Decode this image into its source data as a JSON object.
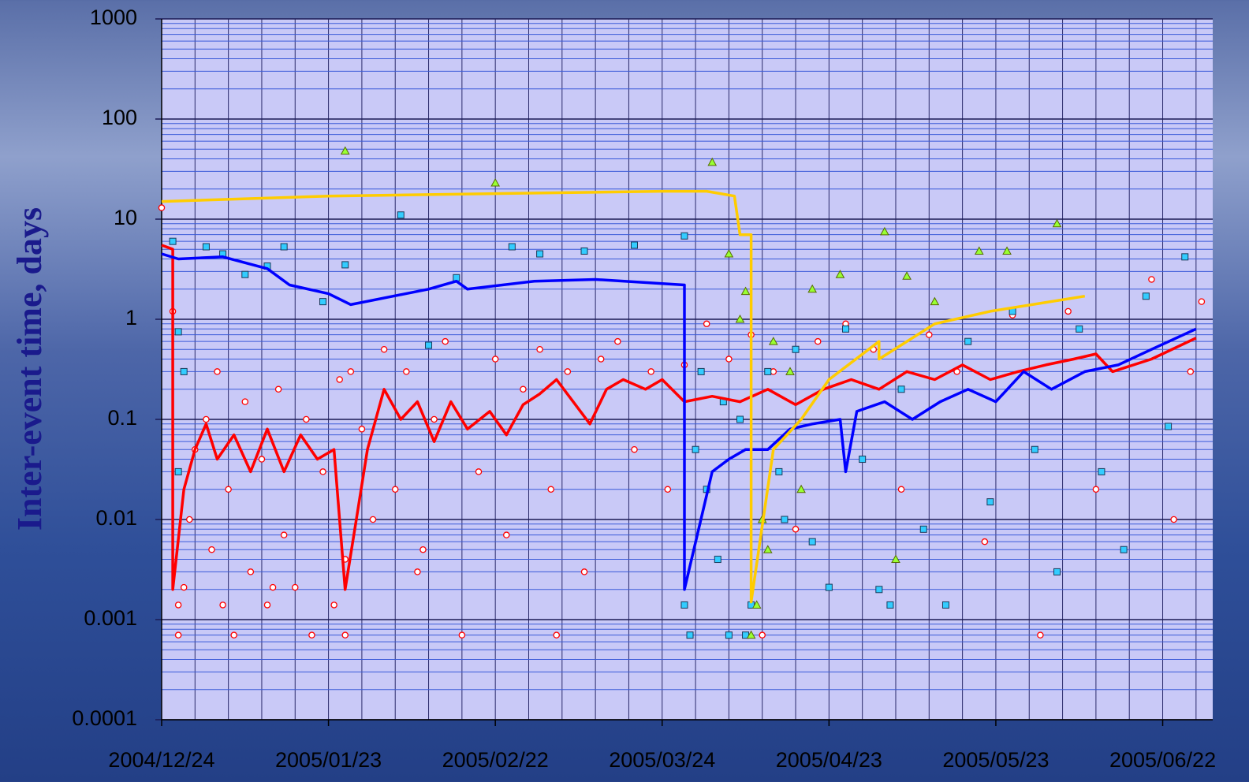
{
  "chart_data": {
    "type": "scatter",
    "ylabel": "Inter-event time, days",
    "yscale": "log",
    "grid": true,
    "xlim": [
      "2004/12/24",
      "2005/07/01"
    ],
    "xticks": [
      "2004/12/24",
      "2005/01/23",
      "2005/02/22",
      "2005/03/24",
      "2005/04/23",
      "2005/05/23",
      "2005/06/22"
    ],
    "ylim": [
      0.0001,
      1000
    ],
    "yticks": [
      1000,
      100,
      10,
      1,
      0.1,
      0.01,
      0.001,
      0.0001
    ],
    "series": [
      {
        "marker": "circle",
        "color": "#ff0000",
        "x": [
          "2004/12/24",
          "2004/12/26",
          "2004/12/27",
          "2004/12/27",
          "2004/12/28",
          "2004/12/29",
          "2004/12/30",
          "2005/01/01",
          "2005/01/02",
          "2005/01/03",
          "2005/01/05",
          "2005/01/06",
          "2005/01/08",
          "2005/01/09",
          "2005/01/11",
          "2005/01/12",
          "2005/01/14",
          "2005/01/15",
          "2005/01/17",
          "2005/01/19",
          "2005/01/20",
          "2005/01/22",
          "2005/01/24",
          "2005/01/25",
          "2005/01/26",
          "2005/01/26",
          "2005/01/27",
          "2005/01/29",
          "2005/01/31",
          "2005/02/02",
          "2005/02/04",
          "2005/02/06",
          "2005/02/08",
          "2005/02/11",
          "2005/02/13",
          "2005/02/16",
          "2005/02/19",
          "2005/02/22",
          "2005/02/24",
          "2005/02/27",
          "2005/03/02",
          "2005/03/04",
          "2005/03/07",
          "2005/03/10",
          "2005/03/13",
          "2005/03/16",
          "2005/03/19",
          "2005/03/22",
          "2005/03/25",
          "2005/03/28",
          "2005/04/01",
          "2005/04/05",
          "2005/04/09",
          "2005/04/13",
          "2005/04/17",
          "2005/04/21",
          "2005/04/26",
          "2005/05/01",
          "2005/05/06",
          "2005/05/11",
          "2005/05/16",
          "2005/05/21",
          "2005/05/26",
          "2005/05/31",
          "2005/06/05",
          "2005/06/10",
          "2005/06/15",
          "2005/06/20",
          "2005/06/24",
          "2005/06/27",
          "2005/06/29",
          "2005/01/04",
          "2005/01/13",
          "2005/02/09",
          "2005/03/05",
          "2005/04/11"
        ],
        "values": [
          13,
          1.2,
          0.0007,
          0.0014,
          0.0021,
          0.01,
          0.05,
          0.1,
          0.005,
          0.3,
          0.02,
          0.0007,
          0.15,
          0.003,
          0.04,
          0.0014,
          0.2,
          0.007,
          0.0021,
          0.1,
          0.0007,
          0.03,
          0.0014,
          0.25,
          0.0007,
          0.004,
          0.3,
          0.08,
          0.01,
          0.5,
          0.02,
          0.3,
          0.003,
          0.1,
          0.6,
          0.0007,
          0.03,
          0.4,
          0.007,
          0.2,
          0.5,
          0.02,
          0.3,
          0.003,
          0.4,
          0.6,
          0.05,
          0.3,
          0.02,
          0.35,
          0.9,
          0.4,
          0.7,
          0.3,
          0.008,
          0.6,
          0.9,
          0.5,
          0.02,
          0.7,
          0.3,
          0.006,
          1.1,
          0.0007,
          1.2,
          0.02,
          0.005,
          2.5,
          0.01,
          0.3,
          1.5,
          0.0014,
          0.0021,
          0.005,
          0.0007,
          0.0007
        ]
      },
      {
        "marker": "square",
        "color": "#33ccff",
        "x": [
          "2004/12/26",
          "2004/12/27",
          "2004/12/27",
          "2004/12/28",
          "2005/01/01",
          "2005/01/04",
          "2005/01/08",
          "2005/01/12",
          "2005/01/15",
          "2005/01/22",
          "2005/01/26",
          "2005/02/05",
          "2005/02/10",
          "2005/02/15",
          "2005/02/25",
          "2005/03/02",
          "2005/03/10",
          "2005/03/19",
          "2005/03/28",
          "2005/03/28",
          "2005/03/29",
          "2005/03/30",
          "2005/04/01",
          "2005/04/03",
          "2005/04/05",
          "2005/04/07",
          "2005/04/09",
          "2005/04/12",
          "2005/04/14",
          "2005/04/17",
          "2005/04/20",
          "2005/04/23",
          "2005/04/26",
          "2005/04/29",
          "2005/05/02",
          "2005/05/06",
          "2005/05/10",
          "2005/05/14",
          "2005/05/18",
          "2005/05/22",
          "2005/05/26",
          "2005/05/30",
          "2005/06/03",
          "2005/06/07",
          "2005/06/11",
          "2005/06/15",
          "2005/06/19",
          "2005/06/23",
          "2005/06/26",
          "2005/04/04",
          "2005/04/08",
          "2005/04/15",
          "2005/05/04",
          "2005/03/31"
        ],
        "values": [
          6,
          0.75,
          0.03,
          0.3,
          5.3,
          4.5,
          2.8,
          3.4,
          5.3,
          1.5,
          3.5,
          11,
          0.55,
          2.6,
          5.3,
          4.5,
          4.8,
          5.5,
          6.8,
          0.0014,
          0.0007,
          0.05,
          0.02,
          0.004,
          0.0007,
          0.1,
          0.0014,
          0.3,
          0.03,
          0.5,
          0.006,
          0.0021,
          0.8,
          0.04,
          0.002,
          0.2,
          0.008,
          0.0014,
          0.6,
          0.015,
          1.2,
          0.05,
          0.003,
          0.8,
          0.03,
          0.005,
          1.7,
          0.085,
          4.2,
          0.15,
          0.0007,
          0.01,
          0.0014,
          0.3
        ]
      },
      {
        "marker": "triangle",
        "color": "#99ff33",
        "x": [
          "2005/01/26",
          "2005/02/22",
          "2005/04/02",
          "2005/04/05",
          "2005/04/07",
          "2005/04/08",
          "2005/04/09",
          "2005/04/10",
          "2005/04/11",
          "2005/04/13",
          "2005/04/16",
          "2005/04/20",
          "2005/04/25",
          "2005/05/03",
          "2005/05/07",
          "2005/05/12",
          "2005/05/20",
          "2005/05/25",
          "2005/06/03",
          "2005/04/12",
          "2005/04/18",
          "2005/05/05"
        ],
        "values": [
          48,
          23,
          37,
          4.5,
          1,
          1.9,
          0.0007,
          0.0014,
          0.01,
          0.6,
          0.3,
          2,
          2.8,
          7.5,
          2.7,
          1.5,
          4.8,
          4.8,
          9,
          0.005,
          0.02,
          0.004
        ]
      },
      {
        "marker": "line",
        "color": "#ff0000",
        "x": [
          "2004/12/24",
          "2004/12/26",
          "2004/12/26",
          "2004/12/28",
          "2004/12/30",
          "2005/01/01",
          "2005/01/03",
          "2005/01/06",
          "2005/01/09",
          "2005/01/12",
          "2005/01/15",
          "2005/01/18",
          "2005/01/21",
          "2005/01/24",
          "2005/01/26",
          "2005/01/28",
          "2005/01/30",
          "2005/02/02",
          "2005/02/05",
          "2005/02/08",
          "2005/02/11",
          "2005/02/14",
          "2005/02/17",
          "2005/02/21",
          "2005/02/24",
          "2005/02/27",
          "2005/03/02",
          "2005/03/05",
          "2005/03/08",
          "2005/03/11",
          "2005/03/14",
          "2005/03/17",
          "2005/03/21",
          "2005/03/24",
          "2005/03/28",
          "2005/04/02",
          "2005/04/07",
          "2005/04/12",
          "2005/04/17",
          "2005/04/22",
          "2005/04/27",
          "2005/05/02",
          "2005/05/07",
          "2005/05/12",
          "2005/05/17",
          "2005/05/22",
          "2005/05/27",
          "2005/06/01",
          "2005/06/06",
          "2005/06/10",
          "2005/06/13",
          "2005/06/20",
          "2005/06/28"
        ],
        "values": [
          5.5,
          5,
          0.002,
          0.02,
          0.05,
          0.09,
          0.04,
          0.07,
          0.03,
          0.08,
          0.03,
          0.07,
          0.04,
          0.05,
          0.002,
          0.01,
          0.05,
          0.2,
          0.1,
          0.15,
          0.06,
          0.15,
          0.08,
          0.12,
          0.07,
          0.14,
          0.18,
          0.25,
          0.15,
          0.09,
          0.2,
          0.25,
          0.2,
          0.25,
          0.15,
          0.17,
          0.15,
          0.2,
          0.14,
          0.2,
          0.25,
          0.2,
          0.3,
          0.25,
          0.35,
          0.25,
          0.3,
          0.35,
          0.4,
          0.45,
          0.3,
          0.4,
          0.65
        ]
      },
      {
        "marker": "line",
        "color": "#0000ff",
        "x": [
          "2004/12/24",
          "2004/12/27",
          "2005/01/04",
          "2005/01/12",
          "2005/01/16",
          "2005/01/23",
          "2005/01/27",
          "2005/02/10",
          "2005/02/15",
          "2005/02/17",
          "2005/03/01",
          "2005/03/12",
          "2005/03/28",
          "2005/03/28",
          "2005/04/02",
          "2005/04/05",
          "2005/04/08",
          "2005/04/12",
          "2005/04/16",
          "2005/04/20",
          "2005/04/25",
          "2005/04/26",
          "2005/04/28",
          "2005/05/03",
          "2005/05/08",
          "2005/05/13",
          "2005/05/18",
          "2005/05/23",
          "2005/05/28",
          "2005/06/02",
          "2005/06/08",
          "2005/06/14",
          "2005/06/20",
          "2005/06/28"
        ],
        "values": [
          4.5,
          4,
          4.2,
          3.2,
          2.2,
          1.8,
          1.4,
          2,
          2.4,
          2,
          2.4,
          2.5,
          2.2,
          0.002,
          0.03,
          0.04,
          0.05,
          0.05,
          0.08,
          0.09,
          0.1,
          0.03,
          0.12,
          0.15,
          0.1,
          0.15,
          0.2,
          0.15,
          0.3,
          0.2,
          0.3,
          0.35,
          0.5,
          0.8
        ]
      },
      {
        "marker": "line",
        "color": "#ffcc00",
        "x": [
          "2004/12/24",
          "2005/01/23",
          "2005/02/22",
          "2005/03/24",
          "2005/04/01",
          "2005/04/06",
          "2005/04/07",
          "2005/04/09",
          "2005/04/09",
          "2005/04/13",
          "2005/04/18",
          "2005/04/23",
          "2005/05/02",
          "2005/05/02",
          "2005/05/12",
          "2005/05/22",
          "2005/06/08"
        ],
        "values": [
          15,
          17,
          18,
          19,
          19,
          17,
          7,
          7,
          0.0015,
          0.05,
          0.1,
          0.25,
          0.6,
          0.4,
          0.9,
          1.2,
          1.7
        ]
      }
    ]
  }
}
